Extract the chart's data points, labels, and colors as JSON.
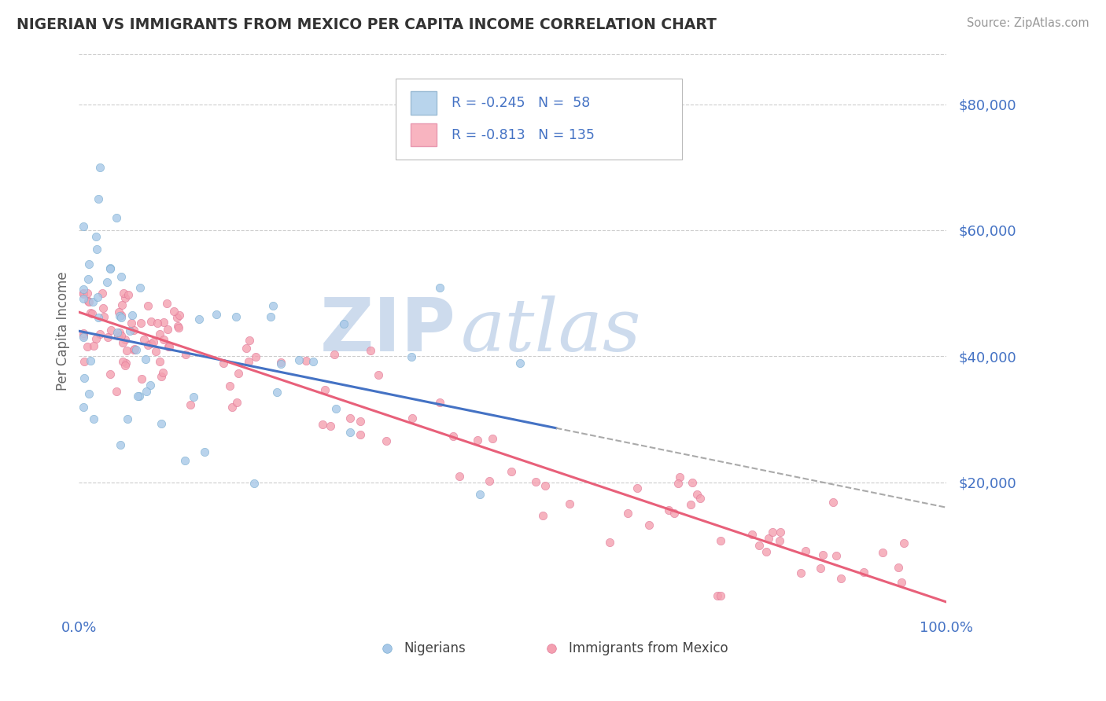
{
  "title": "NIGERIAN VS IMMIGRANTS FROM MEXICO PER CAPITA INCOME CORRELATION CHART",
  "source": "Source: ZipAtlas.com",
  "ylabel": "Per Capita Income",
  "ytick_values": [
    20000,
    40000,
    60000,
    80000
  ],
  "ymin": 0,
  "ymax": 88000,
  "xmin": 0.0,
  "xmax": 1.0,
  "nig_intercept": 44000,
  "nig_slope": -28000,
  "mex_intercept": 47000,
  "mex_slope": -46000,
  "color_nigerian_dot": "#a8c8e8",
  "color_nigerian_edge": "#7aaed0",
  "color_mexico_dot": "#f4a0b0",
  "color_mexico_edge": "#e07898",
  "color_nig_line": "#4472c4",
  "color_mex_line": "#e8607a",
  "color_dash_line": "#aaaaaa",
  "background_color": "#ffffff",
  "grid_color": "#cccccc",
  "title_color": "#333333",
  "tick_label_color": "#4472c4",
  "watermark_zip_color": "#c8d8ec",
  "watermark_atlas_color": "#c8d8ec",
  "legend_color": "#4472c4",
  "legend_box_nig": "#b8d4ec",
  "legend_box_mex": "#f8b4c0",
  "source_color": "#999999"
}
